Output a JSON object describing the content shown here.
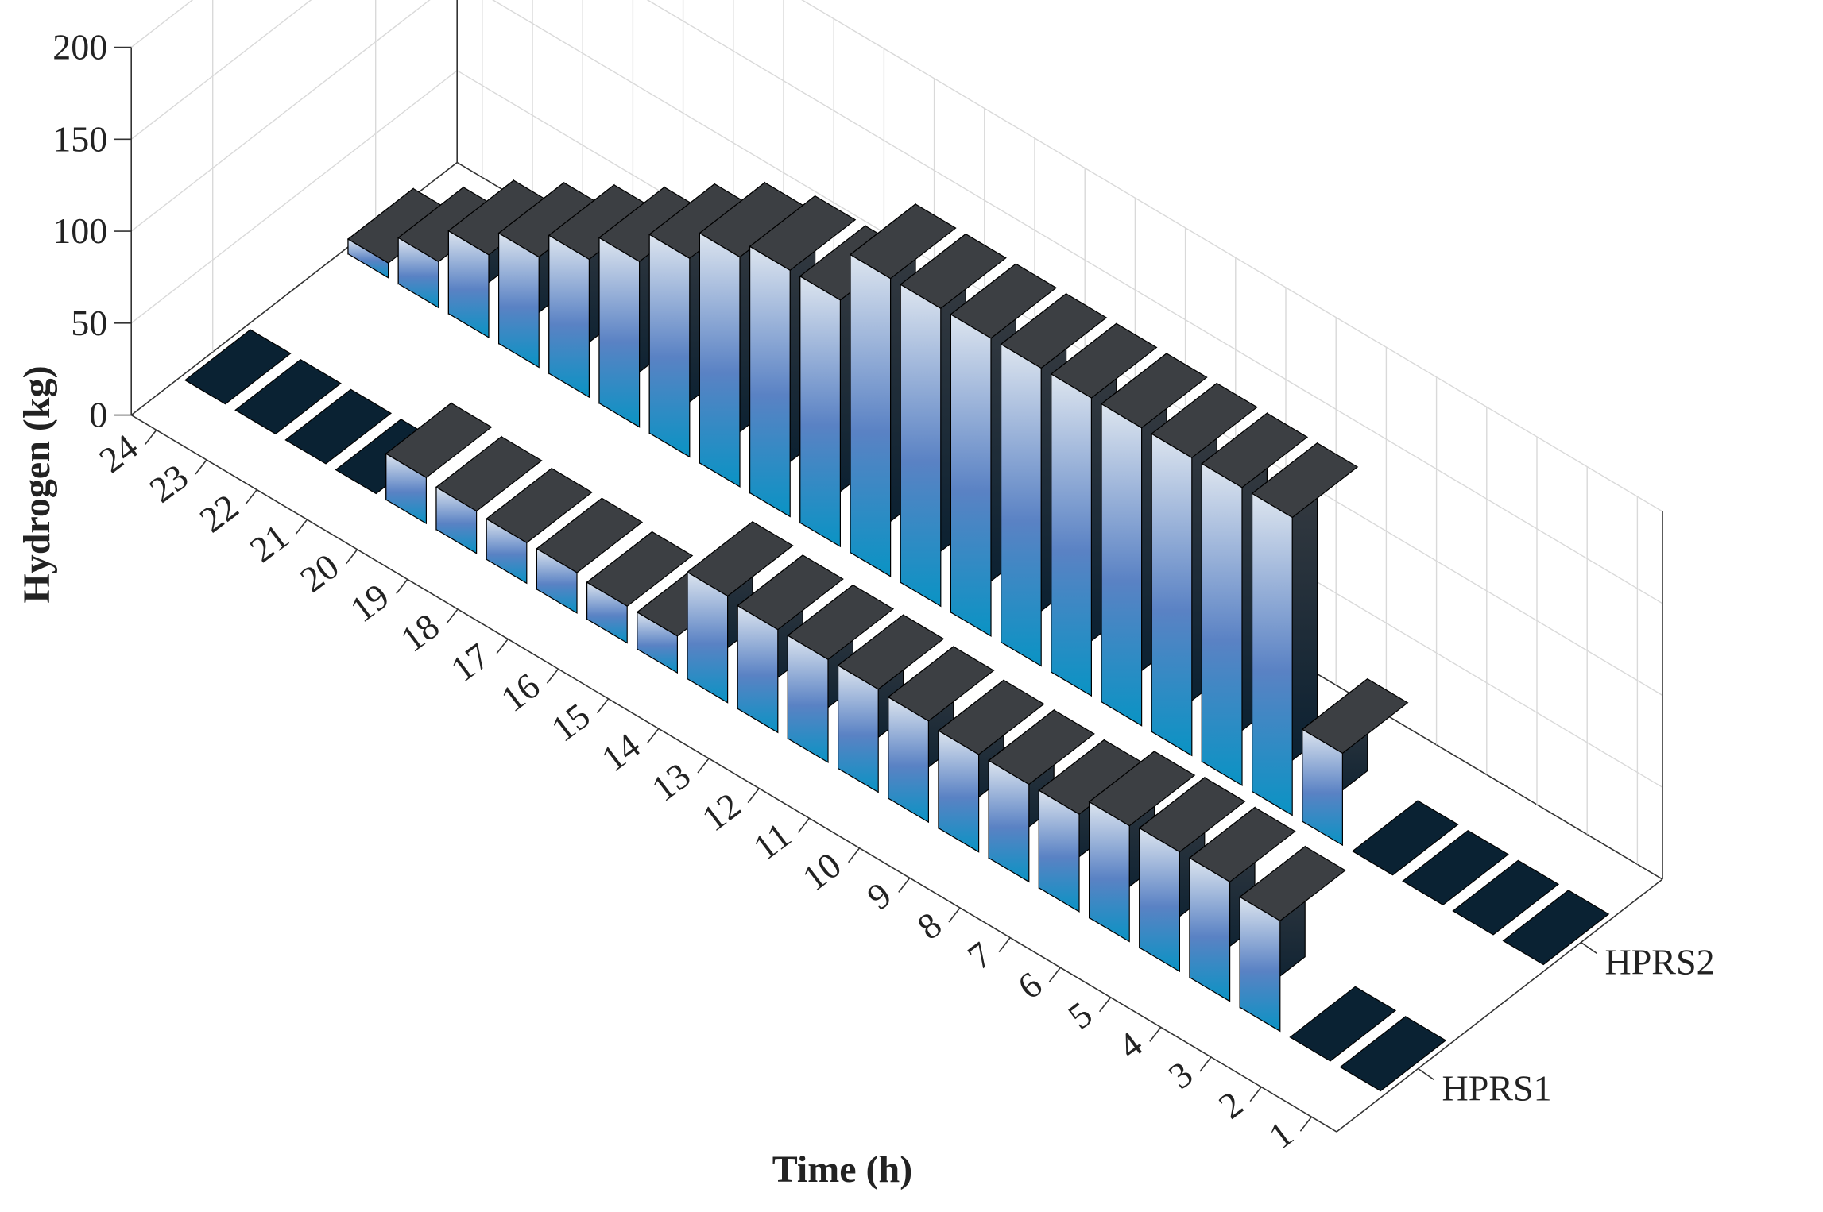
{
  "chart_data": {
    "type": "bar",
    "xlabel": "Time (h)",
    "ylabel": "Hydrogen (kg)",
    "zlim": [
      0,
      200
    ],
    "z_ticks": [
      "0",
      "50",
      "100",
      "150",
      "200"
    ],
    "grid": true,
    "categories": [
      "1",
      "2",
      "3",
      "4",
      "5",
      "6",
      "7",
      "8",
      "9",
      "10",
      "11",
      "12",
      "13",
      "14",
      "15",
      "16",
      "17",
      "18",
      "19",
      "20",
      "21",
      "22",
      "23",
      "24"
    ],
    "series": [
      {
        "name": "HPRS1",
        "values": [
          0,
          0,
          60,
          65,
          65,
          63,
          53,
          53,
          53,
          55,
          56,
          56,
          56,
          58,
          20,
          20,
          22,
          22,
          23,
          25,
          0,
          0,
          0,
          0
        ]
      },
      {
        "name": "HPRS2",
        "values": [
          0,
          0,
          0,
          0,
          50,
          162,
          162,
          162,
          162,
          162,
          162,
          162,
          162,
          162,
          134,
          134,
          125,
          108,
          90,
          75,
          60,
          45,
          25,
          8
        ]
      }
    ],
    "colors": {
      "face_top": "#dde5ef",
      "face_mid": "#5a82c4",
      "face_bottom": "#0a93c4",
      "side": "#0c2338",
      "top": "#3c3f43",
      "flat": "#0a2233"
    }
  }
}
